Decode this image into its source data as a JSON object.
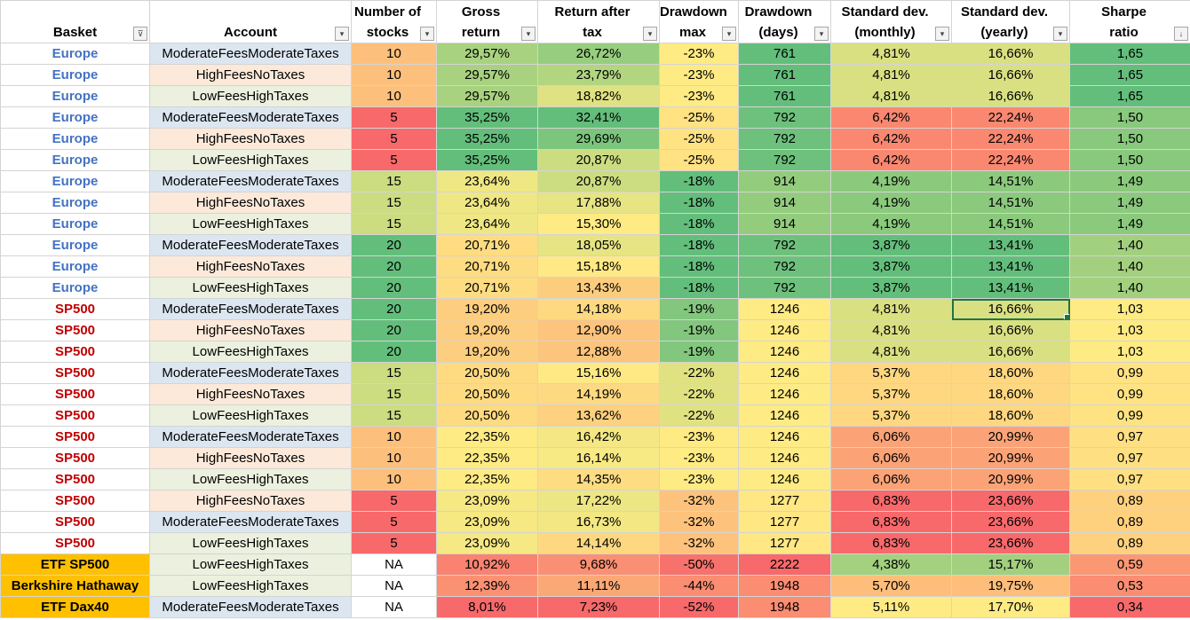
{
  "columns": [
    {
      "key": "basket",
      "label_line1": "",
      "label_line2": "Basket",
      "filter_icon": "filter-active-icon",
      "filter_glyph": "⊽"
    },
    {
      "key": "account",
      "label_line1": "",
      "label_line2": "Account",
      "filter_icon": "dropdown-arrow-icon",
      "filter_glyph": "▾"
    },
    {
      "key": "stocks",
      "label_line1": "Number of",
      "label_line2": "stocks",
      "filter_icon": "dropdown-arrow-icon",
      "filter_glyph": "▾"
    },
    {
      "key": "gross",
      "label_line1": "Gross",
      "label_line2": "return",
      "filter_icon": "dropdown-arrow-icon",
      "filter_glyph": "▾"
    },
    {
      "key": "ret",
      "label_line1": "Return after",
      "label_line2": "tax",
      "filter_icon": "dropdown-arrow-icon",
      "filter_glyph": "▾"
    },
    {
      "key": "ddmax",
      "label_line1": "Drawdown",
      "label_line2": "max",
      "filter_icon": "dropdown-arrow-icon",
      "filter_glyph": "▾"
    },
    {
      "key": "ddays",
      "label_line1": "Drawdown",
      "label_line2": "(days)",
      "filter_icon": "dropdown-arrow-icon",
      "filter_glyph": "▾"
    },
    {
      "key": "sdm",
      "label_line1": "Standard dev.",
      "label_line2": "(monthly)",
      "filter_icon": "dropdown-arrow-icon",
      "filter_glyph": "▾"
    },
    {
      "key": "sdy",
      "label_line1": "Standard dev.",
      "label_line2": "(yearly)",
      "filter_icon": "dropdown-arrow-icon",
      "filter_glyph": "▾"
    },
    {
      "key": "sharpe",
      "label_line1": "Sharpe",
      "label_line2": "ratio",
      "filter_icon": "sort-descending-icon",
      "filter_glyph": "↓"
    }
  ],
  "rows": [
    {
      "basket": "Europe",
      "account": "ModerateFeesModerateTaxes",
      "stocks": "10",
      "gross": "29,57%",
      "ret": "26,72%",
      "ddmax": "-23%",
      "ddays": "761",
      "sdm": "4,81%",
      "sdy": "16,66%",
      "sharpe": "1,65"
    },
    {
      "basket": "Europe",
      "account": "HighFeesNoTaxes",
      "stocks": "10",
      "gross": "29,57%",
      "ret": "23,79%",
      "ddmax": "-23%",
      "ddays": "761",
      "sdm": "4,81%",
      "sdy": "16,66%",
      "sharpe": "1,65"
    },
    {
      "basket": "Europe",
      "account": "LowFeesHighTaxes",
      "stocks": "10",
      "gross": "29,57%",
      "ret": "18,82%",
      "ddmax": "-23%",
      "ddays": "761",
      "sdm": "4,81%",
      "sdy": "16,66%",
      "sharpe": "1,65"
    },
    {
      "basket": "Europe",
      "account": "ModerateFeesModerateTaxes",
      "stocks": "5",
      "gross": "35,25%",
      "ret": "32,41%",
      "ddmax": "-25%",
      "ddays": "792",
      "sdm": "6,42%",
      "sdy": "22,24%",
      "sharpe": "1,50"
    },
    {
      "basket": "Europe",
      "account": "HighFeesNoTaxes",
      "stocks": "5",
      "gross": "35,25%",
      "ret": "29,69%",
      "ddmax": "-25%",
      "ddays": "792",
      "sdm": "6,42%",
      "sdy": "22,24%",
      "sharpe": "1,50"
    },
    {
      "basket": "Europe",
      "account": "LowFeesHighTaxes",
      "stocks": "5",
      "gross": "35,25%",
      "ret": "20,87%",
      "ddmax": "-25%",
      "ddays": "792",
      "sdm": "6,42%",
      "sdy": "22,24%",
      "sharpe": "1,50"
    },
    {
      "basket": "Europe",
      "account": "ModerateFeesModerateTaxes",
      "stocks": "15",
      "gross": "23,64%",
      "ret": "20,87%",
      "ddmax": "-18%",
      "ddays": "914",
      "sdm": "4,19%",
      "sdy": "14,51%",
      "sharpe": "1,49"
    },
    {
      "basket": "Europe",
      "account": "HighFeesNoTaxes",
      "stocks": "15",
      "gross": "23,64%",
      "ret": "17,88%",
      "ddmax": "-18%",
      "ddays": "914",
      "sdm": "4,19%",
      "sdy": "14,51%",
      "sharpe": "1,49"
    },
    {
      "basket": "Europe",
      "account": "LowFeesHighTaxes",
      "stocks": "15",
      "gross": "23,64%",
      "ret": "15,30%",
      "ddmax": "-18%",
      "ddays": "914",
      "sdm": "4,19%",
      "sdy": "14,51%",
      "sharpe": "1,49"
    },
    {
      "basket": "Europe",
      "account": "ModerateFeesModerateTaxes",
      "stocks": "20",
      "gross": "20,71%",
      "ret": "18,05%",
      "ddmax": "-18%",
      "ddays": "792",
      "sdm": "3,87%",
      "sdy": "13,41%",
      "sharpe": "1,40"
    },
    {
      "basket": "Europe",
      "account": "HighFeesNoTaxes",
      "stocks": "20",
      "gross": "20,71%",
      "ret": "15,18%",
      "ddmax": "-18%",
      "ddays": "792",
      "sdm": "3,87%",
      "sdy": "13,41%",
      "sharpe": "1,40"
    },
    {
      "basket": "Europe",
      "account": "LowFeesHighTaxes",
      "stocks": "20",
      "gross": "20,71%",
      "ret": "13,43%",
      "ddmax": "-18%",
      "ddays": "792",
      "sdm": "3,87%",
      "sdy": "13,41%",
      "sharpe": "1,40"
    },
    {
      "basket": "SP500",
      "account": "ModerateFeesModerateTaxes",
      "stocks": "20",
      "gross": "19,20%",
      "ret": "14,18%",
      "ddmax": "-19%",
      "ddays": "1246",
      "sdm": "4,81%",
      "sdy": "16,66%",
      "sharpe": "1,03"
    },
    {
      "basket": "SP500",
      "account": "HighFeesNoTaxes",
      "stocks": "20",
      "gross": "19,20%",
      "ret": "12,90%",
      "ddmax": "-19%",
      "ddays": "1246",
      "sdm": "4,81%",
      "sdy": "16,66%",
      "sharpe": "1,03"
    },
    {
      "basket": "SP500",
      "account": "LowFeesHighTaxes",
      "stocks": "20",
      "gross": "19,20%",
      "ret": "12,88%",
      "ddmax": "-19%",
      "ddays": "1246",
      "sdm": "4,81%",
      "sdy": "16,66%",
      "sharpe": "1,03"
    },
    {
      "basket": "SP500",
      "account": "ModerateFeesModerateTaxes",
      "stocks": "15",
      "gross": "20,50%",
      "ret": "15,16%",
      "ddmax": "-22%",
      "ddays": "1246",
      "sdm": "5,37%",
      "sdy": "18,60%",
      "sharpe": "0,99"
    },
    {
      "basket": "SP500",
      "account": "HighFeesNoTaxes",
      "stocks": "15",
      "gross": "20,50%",
      "ret": "14,19%",
      "ddmax": "-22%",
      "ddays": "1246",
      "sdm": "5,37%",
      "sdy": "18,60%",
      "sharpe": "0,99"
    },
    {
      "basket": "SP500",
      "account": "LowFeesHighTaxes",
      "stocks": "15",
      "gross": "20,50%",
      "ret": "13,62%",
      "ddmax": "-22%",
      "ddays": "1246",
      "sdm": "5,37%",
      "sdy": "18,60%",
      "sharpe": "0,99"
    },
    {
      "basket": "SP500",
      "account": "ModerateFeesModerateTaxes",
      "stocks": "10",
      "gross": "22,35%",
      "ret": "16,42%",
      "ddmax": "-23%",
      "ddays": "1246",
      "sdm": "6,06%",
      "sdy": "20,99%",
      "sharpe": "0,97"
    },
    {
      "basket": "SP500",
      "account": "HighFeesNoTaxes",
      "stocks": "10",
      "gross": "22,35%",
      "ret": "16,14%",
      "ddmax": "-23%",
      "ddays": "1246",
      "sdm": "6,06%",
      "sdy": "20,99%",
      "sharpe": "0,97"
    },
    {
      "basket": "SP500",
      "account": "LowFeesHighTaxes",
      "stocks": "10",
      "gross": "22,35%",
      "ret": "14,35%",
      "ddmax": "-23%",
      "ddays": "1246",
      "sdm": "6,06%",
      "sdy": "20,99%",
      "sharpe": "0,97"
    },
    {
      "basket": "SP500",
      "account": "HighFeesNoTaxes",
      "stocks": "5",
      "gross": "23,09%",
      "ret": "17,22%",
      "ddmax": "-32%",
      "ddays": "1277",
      "sdm": "6,83%",
      "sdy": "23,66%",
      "sharpe": "0,89"
    },
    {
      "basket": "SP500",
      "account": "ModerateFeesModerateTaxes",
      "stocks": "5",
      "gross": "23,09%",
      "ret": "16,73%",
      "ddmax": "-32%",
      "ddays": "1277",
      "sdm": "6,83%",
      "sdy": "23,66%",
      "sharpe": "0,89"
    },
    {
      "basket": "SP500",
      "account": "LowFeesHighTaxes",
      "stocks": "5",
      "gross": "23,09%",
      "ret": "14,14%",
      "ddmax": "-32%",
      "ddays": "1277",
      "sdm": "6,83%",
      "sdy": "23,66%",
      "sharpe": "0,89"
    },
    {
      "basket": "ETF SP500",
      "account": "LowFeesHighTaxes",
      "stocks": "NA",
      "gross": "10,92%",
      "ret": "9,68%",
      "ddmax": "-50%",
      "ddays": "2222",
      "sdm": "4,38%",
      "sdy": "15,17%",
      "sharpe": "0,59"
    },
    {
      "basket": "Berkshire Hathaway",
      "account": "LowFeesHighTaxes",
      "stocks": "NA",
      "gross": "12,39%",
      "ret": "11,11%",
      "ddmax": "-44%",
      "ddays": "1948",
      "sdm": "5,70%",
      "sdy": "19,75%",
      "sharpe": "0,53"
    },
    {
      "basket": "ETF Dax40",
      "account": "ModerateFeesModerateTaxes",
      "stocks": "NA",
      "gross": "8,01%",
      "ret": "7,23%",
      "ddmax": "-52%",
      "ddays": "1948",
      "sdm": "5,11%",
      "sdy": "17,70%",
      "sharpe": "0,34"
    }
  ],
  "colors": {
    "europe_text": "#4472c4",
    "sp500_text": "#c00000",
    "benchmark_fill": "#ffc000",
    "account_moderate_fill": "#dce6f1",
    "account_highfees_fill": "#fde9d9",
    "account_lowfees_fill": "#ebf1de",
    "scale_low": "#f8696b",
    "scale_mid": "#ffeb84",
    "scale_high": "#63be7b",
    "selection": "#217346"
  },
  "color_scales": {
    "stocks": "higher_is_better",
    "gross": "higher_is_better",
    "ret": "higher_is_better",
    "ddmax": "higher_is_better",
    "ddays": "lower_is_better",
    "sdm": "lower_is_better",
    "sdy": "lower_is_better",
    "sharpe": "higher_is_better"
  },
  "selected_cell": {
    "row": 12,
    "column": "sdy"
  }
}
